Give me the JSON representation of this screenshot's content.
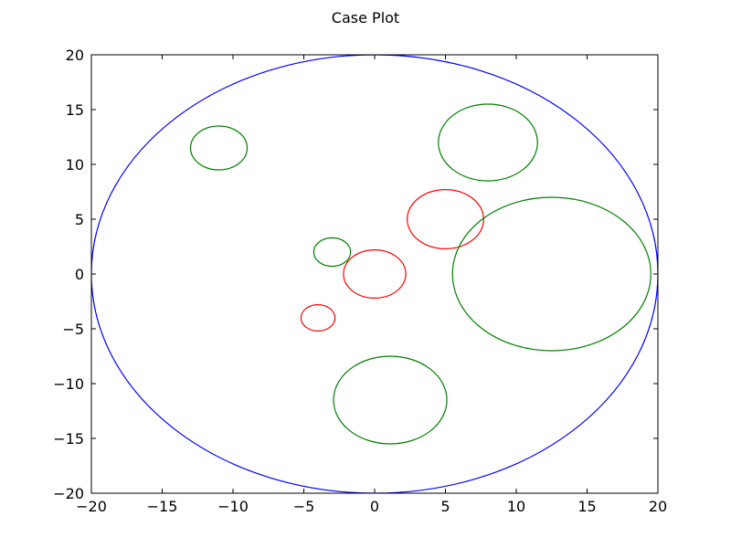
{
  "chart_data": {
    "type": "scatter",
    "title": "Case Plot",
    "xlabel": "",
    "ylabel": "",
    "xlim": [
      -20,
      20
    ],
    "ylim": [
      -20,
      20
    ],
    "xticks": [
      -20,
      -15,
      -10,
      -5,
      0,
      5,
      10,
      15,
      20
    ],
    "yticks": [
      -20,
      -15,
      -10,
      -5,
      0,
      5,
      10,
      15,
      20
    ],
    "xtick_labels": [
      "−20",
      "−15",
      "−10",
      "−5",
      "0",
      "5",
      "10",
      "15",
      "20"
    ],
    "ytick_labels": [
      "−20",
      "−15",
      "−10",
      "−5",
      "0",
      "5",
      "10",
      "15",
      "20"
    ],
    "grid": false,
    "series": [
      {
        "color": "#0000ff",
        "circles": [
          {
            "cx": 0,
            "cy": 0,
            "r": 20
          }
        ]
      },
      {
        "color": "#ff0000",
        "circles": [
          {
            "cx": 0,
            "cy": 0,
            "r": 2.2
          },
          {
            "cx": 5,
            "cy": 5,
            "r": 2.7
          },
          {
            "cx": -4,
            "cy": -4,
            "r": 1.2
          }
        ]
      },
      {
        "color": "#008000",
        "circles": [
          {
            "cx": -11,
            "cy": 11.5,
            "r": 2.0
          },
          {
            "cx": 8,
            "cy": 12,
            "r": 3.5
          },
          {
            "cx": -3,
            "cy": 2,
            "r": 1.3
          },
          {
            "cx": 12.5,
            "cy": 0,
            "r": 7.0
          },
          {
            "cx": 1.1,
            "cy": -11.5,
            "r": 4.0
          }
        ]
      }
    ]
  }
}
